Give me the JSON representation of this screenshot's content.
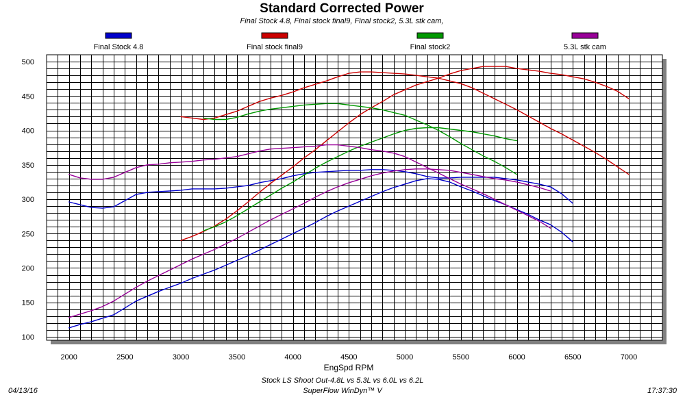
{
  "chart_data": {
    "type": "line",
    "title": "Standard Corrected Power",
    "subtitle": "Final Stock 4.8, Final stock final9, Final stock2, 5.3L stk cam,",
    "xlabel": "EngSpd RPM",
    "ylabel": "",
    "xlim": [
      1800,
      7300
    ],
    "ylim": [
      95,
      510
    ],
    "x_ticks": [
      2000,
      2500,
      3000,
      3500,
      4000,
      4500,
      5000,
      5500,
      6000,
      6500,
      7000
    ],
    "y_ticks": [
      100,
      150,
      200,
      250,
      300,
      350,
      400,
      450,
      500
    ],
    "grid": true,
    "legend_placement": "top",
    "series": [
      {
        "name": "Final Stock 4.8",
        "color": "#0000cc",
        "power": {
          "x": [
            2000,
            2100,
            2200,
            2300,
            2400,
            2500,
            2600,
            2700,
            2800,
            2900,
            3000,
            3100,
            3200,
            3300,
            3400,
            3500,
            3600,
            3700,
            3800,
            3900,
            4000,
            4100,
            4200,
            4300,
            4400,
            4500,
            4600,
            4700,
            4800,
            4900,
            5000,
            5100,
            5200,
            5300,
            5400,
            5500,
            5600,
            5700,
            5800,
            5900,
            6000,
            6100,
            6200,
            6300,
            6400,
            6500
          ],
          "y": [
            296,
            292,
            288,
            287,
            289,
            298,
            307,
            310,
            311,
            312,
            313,
            315,
            315,
            315,
            316,
            318,
            320,
            324,
            327,
            330,
            334,
            337,
            339,
            340,
            341,
            342,
            342,
            343,
            343,
            342,
            340,
            337,
            333,
            331,
            331,
            332,
            332,
            332,
            332,
            330,
            328,
            325,
            322,
            318,
            308,
            294
          ]
        },
        "torque": {
          "x": [
            2000,
            2100,
            2200,
            2300,
            2400,
            2500,
            2600,
            2700,
            2800,
            2900,
            3000,
            3100,
            3200,
            3300,
            3400,
            3500,
            3600,
            3700,
            3800,
            3900,
            4000,
            4100,
            4200,
            4300,
            4400,
            4500,
            4600,
            4700,
            4800,
            4900,
            5000,
            5100,
            5200,
            5300,
            5400,
            5500,
            5600,
            5700,
            5800,
            5900,
            6000,
            6100,
            6200,
            6300,
            6400,
            6500
          ],
          "y": [
            113,
            118,
            122,
            127,
            132,
            142,
            152,
            159,
            166,
            172,
            178,
            185,
            191,
            197,
            204,
            211,
            218,
            226,
            234,
            242,
            250,
            258,
            266,
            275,
            283,
            290,
            297,
            304,
            311,
            317,
            322,
            327,
            330,
            329,
            325,
            318,
            312,
            305,
            298,
            292,
            285,
            278,
            270,
            263,
            252,
            238
          ]
        }
      },
      {
        "name": "Final stock final9",
        "color": "#cc0000",
        "power": {
          "x": [
            3000,
            3100,
            3200,
            3300,
            3400,
            3500,
            3600,
            3700,
            3800,
            3900,
            4000,
            4100,
            4200,
            4300,
            4400,
            4500,
            4600,
            4700,
            4800,
            4900,
            5000,
            5100,
            5200,
            5300,
            5400,
            5500,
            5600,
            5700,
            5800,
            5900,
            6000,
            6100,
            6200,
            6300,
            6400,
            6500,
            6600,
            6700,
            6800,
            6900,
            7000
          ],
          "y": [
            420,
            418,
            416,
            418,
            423,
            428,
            435,
            442,
            447,
            451,
            456,
            462,
            467,
            472,
            478,
            483,
            485,
            485,
            484,
            483,
            482,
            480,
            478,
            476,
            472,
            468,
            462,
            454,
            446,
            438,
            430,
            421,
            412,
            403,
            395,
            386,
            377,
            368,
            358,
            347,
            336
          ]
        },
        "torque": {
          "x": [
            3000,
            3100,
            3200,
            3300,
            3400,
            3500,
            3600,
            3700,
            3800,
            3900,
            4000,
            4100,
            4200,
            4300,
            4400,
            4500,
            4600,
            4700,
            4800,
            4900,
            5000,
            5100,
            5200,
            5300,
            5400,
            5500,
            5600,
            5700,
            5800,
            5900,
            6000,
            6100,
            6200,
            6300,
            6400,
            6500,
            6600,
            6700,
            6800,
            6900,
            7000
          ],
          "y": [
            240,
            246,
            253,
            261,
            271,
            283,
            296,
            310,
            323,
            335,
            347,
            360,
            372,
            385,
            398,
            411,
            423,
            433,
            442,
            452,
            459,
            466,
            471,
            476,
            482,
            487,
            490,
            493,
            493,
            493,
            490,
            488,
            486,
            483,
            481,
            478,
            475,
            470,
            464,
            457,
            446
          ]
        }
      },
      {
        "name": "Final stock2",
        "color": "#009900",
        "power": {
          "x": [
            3200,
            3300,
            3400,
            3500,
            3600,
            3700,
            3800,
            3900,
            4000,
            4100,
            4200,
            4300,
            4400,
            4500,
            4600,
            4700,
            4800,
            4900,
            5000,
            5100,
            5200,
            5300,
            5400,
            5500,
            5600,
            5700,
            5800,
            5900,
            6000
          ],
          "y": [
            418,
            416,
            416,
            419,
            424,
            428,
            431,
            433,
            435,
            437,
            438,
            439,
            439,
            437,
            435,
            433,
            430,
            426,
            422,
            415,
            408,
            400,
            391,
            381,
            372,
            363,
            355,
            346,
            336
          ]
        },
        "torque": {
          "x": [
            3200,
            3300,
            3400,
            3500,
            3600,
            3700,
            3800,
            3900,
            4000,
            4100,
            4200,
            4300,
            4400,
            4500,
            4600,
            4700,
            4800,
            4900,
            5000,
            5100,
            5200,
            5300,
            5400,
            5500,
            5600,
            5700,
            5800,
            5900,
            6000
          ],
          "y": [
            254,
            260,
            267,
            276,
            286,
            296,
            306,
            316,
            325,
            335,
            345,
            354,
            362,
            370,
            377,
            383,
            389,
            395,
            400,
            403,
            404,
            404,
            402,
            400,
            398,
            395,
            392,
            388,
            385
          ]
        }
      },
      {
        "name": "5.3L stk cam",
        "color": "#990099",
        "power": {
          "x": [
            2000,
            2100,
            2200,
            2300,
            2400,
            2500,
            2600,
            2700,
            2800,
            2900,
            3000,
            3100,
            3200,
            3300,
            3400,
            3500,
            3600,
            3700,
            3800,
            3900,
            4000,
            4100,
            4200,
            4300,
            4400,
            4500,
            4600,
            4700,
            4800,
            4900,
            5000,
            5100,
            5200,
            5300,
            5400,
            5500,
            5600,
            5700,
            5800,
            5900,
            6000,
            6100,
            6200,
            6300
          ],
          "y": [
            336,
            331,
            329,
            329,
            332,
            339,
            346,
            350,
            351,
            353,
            354,
            355,
            357,
            358,
            360,
            362,
            366,
            370,
            373,
            374,
            375,
            376,
            377,
            379,
            379,
            377,
            375,
            372,
            370,
            367,
            362,
            354,
            346,
            338,
            330,
            322,
            315,
            308,
            300,
            292,
            284,
            276,
            268,
            258
          ]
        },
        "torque": {
          "x": [
            2000,
            2100,
            2200,
            2300,
            2400,
            2500,
            2600,
            2700,
            2800,
            2900,
            3000,
            3100,
            3200,
            3300,
            3400,
            3500,
            3600,
            3700,
            3800,
            3900,
            4000,
            4100,
            4200,
            4300,
            4400,
            4500,
            4600,
            4700,
            4800,
            4900,
            5000,
            5100,
            5200,
            5300,
            5400,
            5500,
            5600,
            5700,
            5800,
            5900,
            6000,
            6100,
            6200,
            6300
          ],
          "y": [
            128,
            133,
            138,
            144,
            152,
            162,
            172,
            181,
            189,
            197,
            205,
            213,
            220,
            227,
            235,
            243,
            252,
            261,
            270,
            278,
            286,
            294,
            303,
            311,
            318,
            324,
            329,
            334,
            338,
            341,
            343,
            344,
            344,
            343,
            342,
            339,
            336,
            333,
            330,
            328,
            325,
            321,
            317,
            312
          ]
        }
      }
    ]
  },
  "footer": {
    "date": "04/13/16",
    "line1": "Stock LS Shoot Out-4.8L vs 5.3L vs 6.0L vs 6.2L",
    "line2": "SuperFlow WinDyn™ V",
    "time": "17:37:30"
  }
}
